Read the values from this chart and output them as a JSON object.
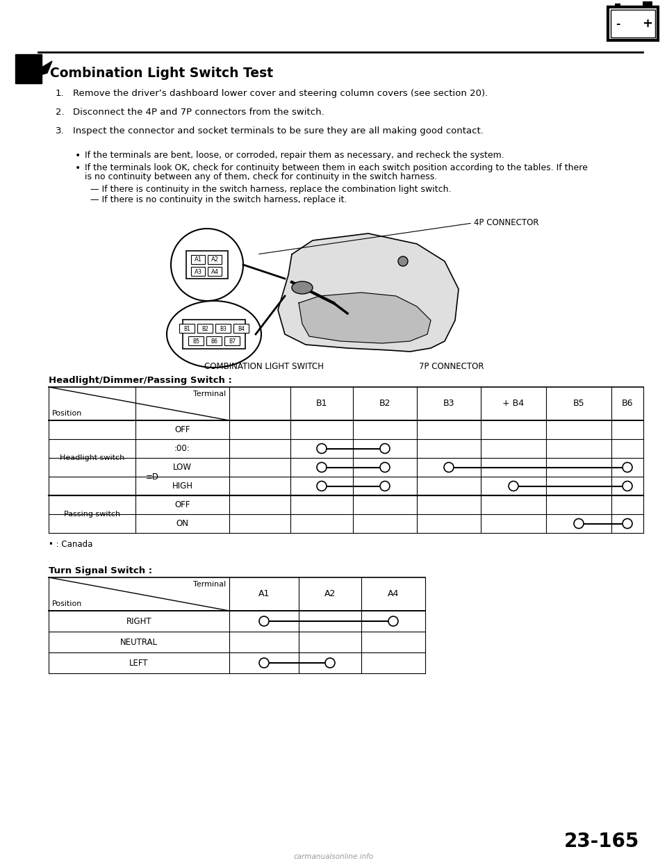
{
  "title": "Combination Light Switch Test",
  "page_number": "23-165",
  "bg_color": "#ffffff",
  "steps": [
    "Remove the driver’s dashboard lower cover and steering column covers (see section 20).",
    "Disconnect the 4P and 7P connectors from the switch.",
    "Inspect the connector and socket terminals to be sure they are all making good contact."
  ],
  "bullet1": "If the terminals are bent, loose, or corroded, repair them as necessary, and recheck the system.",
  "bullet2a": "If the terminals look OK, check for continuity between them in each switch position according to the tables. If there",
  "bullet2b": "is no continuity between any of them, check for continuity in the switch harness.",
  "dash1": "— If there is continuity in the switch harness, replace the combination light switch.",
  "dash2": "— If there is no continuity in the switch harness, replace it.",
  "diagram_label_combo": "COMBINATION LIGHT SWITCH",
  "diagram_label_7p": "7P CONNECTOR",
  "diagram_label_4p": "4P CONNECTOR",
  "table1_title": "Headlight/Dimmer/Passing Switch :",
  "table1_col_headers": [
    "B1",
    "B2",
    "B3",
    "+ B4",
    "B5",
    "B6"
  ],
  "table2_title": "Turn Signal Switch :",
  "table2_col_headers": [
    "A1",
    "A2",
    "A4"
  ],
  "canada_note": "• : Canada"
}
